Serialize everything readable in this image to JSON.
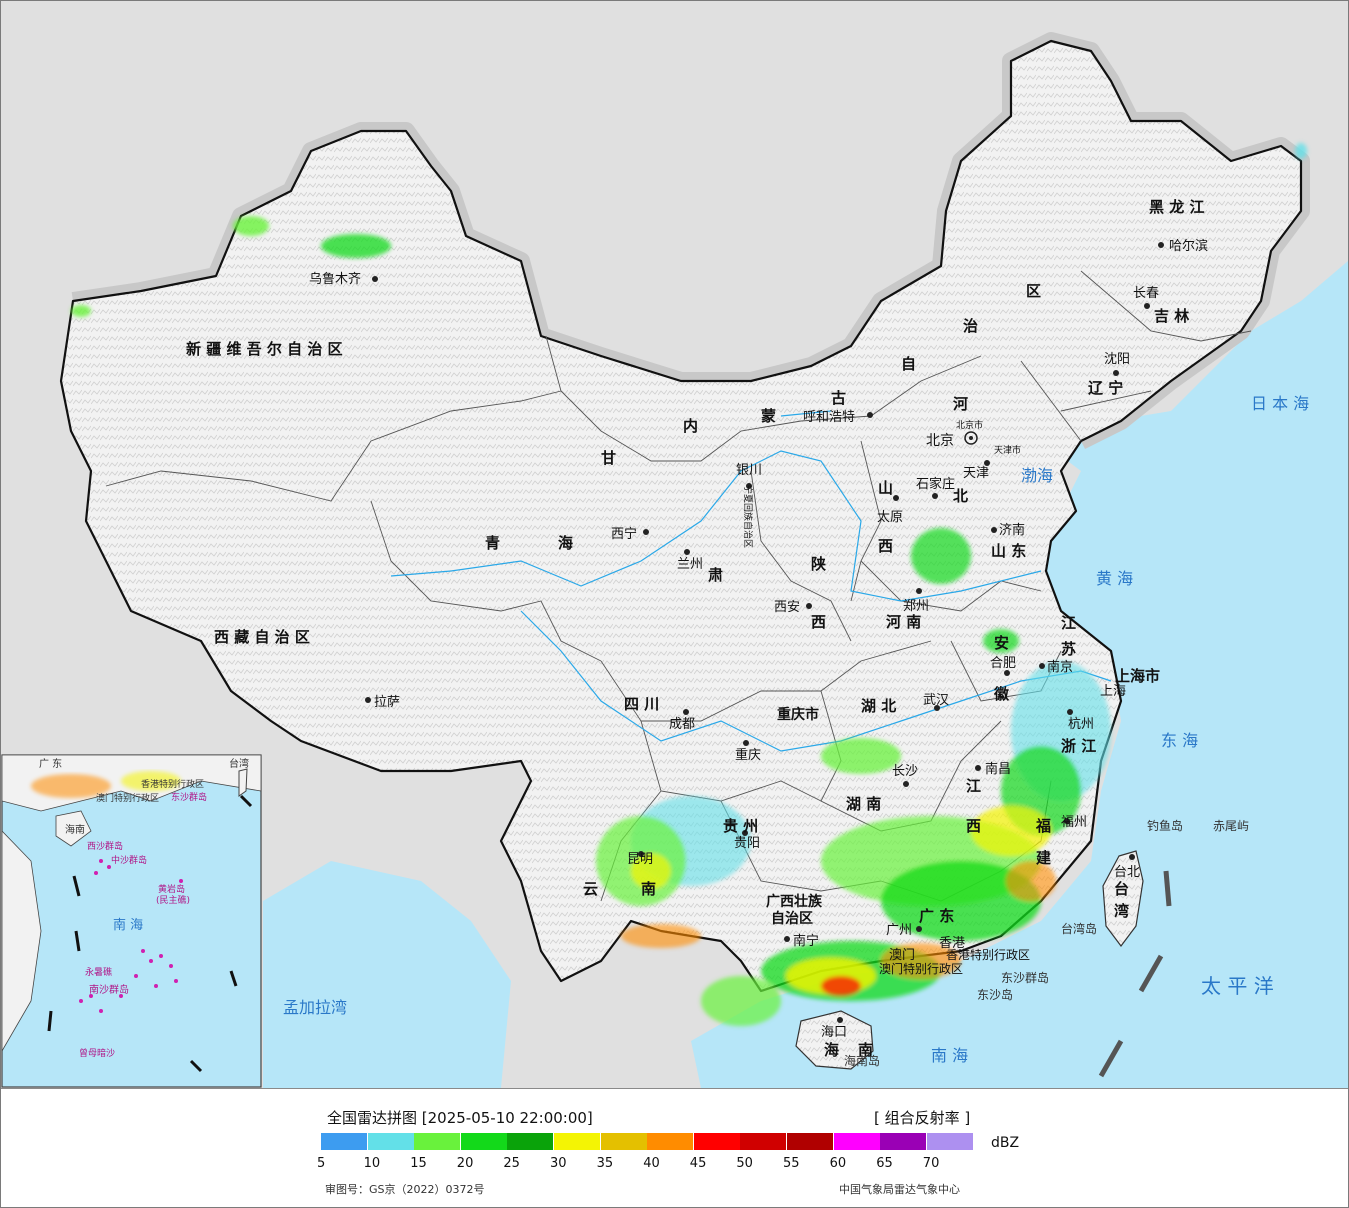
{
  "legend": {
    "title": "全国雷达拼图 [2025-05-10 22:00:00]",
    "product": "[ 组合反射率 ]",
    "unit": "dBZ",
    "colors": [
      "#3d9cf0",
      "#63e0e8",
      "#69f23c",
      "#13d91a",
      "#0aa30a",
      "#f4f404",
      "#e4c000",
      "#ff8c00",
      "#ff0000",
      "#d00000",
      "#b00000",
      "#ff00ff",
      "#9a00b5",
      "#ad90f0"
    ],
    "ticks": [
      "5",
      "10",
      "15",
      "20",
      "25",
      "30",
      "35",
      "40",
      "45",
      "50",
      "55",
      "60",
      "65",
      "70"
    ],
    "approval": "审图号：GS京（2022）0372号",
    "source": "中国气象局雷达气象中心"
  },
  "labels": {
    "xinjiang": "新 疆 维 吾 尔 自 治 区",
    "xizang": "西 藏 自 治 区",
    "qinghai_1": "青",
    "qinghai_2": "海",
    "gansu_1": "甘",
    "gansu_2": "肃",
    "neimenggu": [
      "内",
      "蒙",
      "古",
      "自",
      "治",
      "区"
    ],
    "heilongjiang": "黑 龙 江",
    "jilin": "吉 林",
    "liaoning": "辽 宁",
    "hebei_1": "河",
    "hebei_2": "北",
    "shanxi_1": "山",
    "shanxi_2": "西",
    "shandong": "山 东",
    "henan": "河 南",
    "shaanxi_1": "陕",
    "shaanxi_2": "西",
    "ningxia": "宁夏回族自治区",
    "sichuan": "四 川",
    "chongqing": "重庆市",
    "hubei": "湖 北",
    "hunan": "湖 南",
    "anhui_1": "安",
    "anhui_2": "徽",
    "jiangsu_1": "江",
    "jiangsu_2": "苏",
    "shanghai": "上海市",
    "zhejiang": "浙 江",
    "jiangxi": [
      "江",
      "西"
    ],
    "fujian": [
      "福",
      "建"
    ],
    "guizhou": "贵 州",
    "yunnan_1": "云",
    "yunnan_2": "南",
    "guangxi_1": "广西壮族",
    "guangxi_2": "自治区",
    "guangdong": "广 东",
    "hainan_1": "海",
    "hainan_2": "南",
    "taiwan": [
      "台",
      "湾"
    ],
    "xianggang": "香港特别行政区",
    "aomen": "澳门特别行政区",
    "beijing_city": "北京市",
    "tianjin_city": "天津市"
  },
  "cities": {
    "urumqi": "乌鲁木齐",
    "lhasa": "拉萨",
    "xining": "西宁",
    "lanzhou": "兰州",
    "yinchuan": "银川",
    "hohhot": "呼和浩特",
    "beijing": "北京",
    "tianjin": "天津",
    "shijiazhuang": "石家庄",
    "taiyuan": "太原",
    "jinan": "济南",
    "zhengzhou": "郑州",
    "xian": "西安",
    "chengdu": "成都",
    "chongqing": "重庆",
    "wuhan": "武汉",
    "hefei": "合肥",
    "nanjing": "南京",
    "shanghai": "上海",
    "hangzhou": "杭州",
    "nanchang": "南昌",
    "changsha": "长沙",
    "guiyang": "贵阳",
    "kunming": "昆明",
    "nanning": "南宁",
    "guangzhou": "广州",
    "hongkong": "香港",
    "macau": "澳门",
    "fuzhou": "福州",
    "taibei": "台北",
    "haikou": "海口",
    "shenyang": "沈阳",
    "changchun": "长春",
    "harbin": "哈尔滨"
  },
  "seas": {
    "bohai": "渤海",
    "huanghai": "黄 海",
    "donghai": "东 海",
    "nanhai": "南 海",
    "taipingyang": "太 平 洋",
    "ribenhai": "日 本 海",
    "mengjialawan": "孟加拉湾"
  },
  "islands": {
    "diaoyudao": "钓鱼岛",
    "chiweiyu": "赤尾屿",
    "taiwandao": "台湾岛",
    "dongshaqundao": "东沙群岛",
    "dongshadao": "东沙岛",
    "hainandao": "海南岛"
  },
  "inset": {
    "guangdong": "广 东",
    "taiwan": "台湾",
    "xianggang": "香港特别行政区",
    "aomen": "澳门特别行政区",
    "hainan": "海南",
    "dongsha": "东沙群岛",
    "xisha": "西沙群岛",
    "zhongsha": "中沙群岛",
    "huangyandao": "黄岩岛",
    "minzhujiao": "(民主礁)",
    "nanhai": "南 海",
    "yongshujiao": "永暑礁",
    "nansha": "南沙群岛",
    "zengmuansha": "曾母暗沙"
  }
}
